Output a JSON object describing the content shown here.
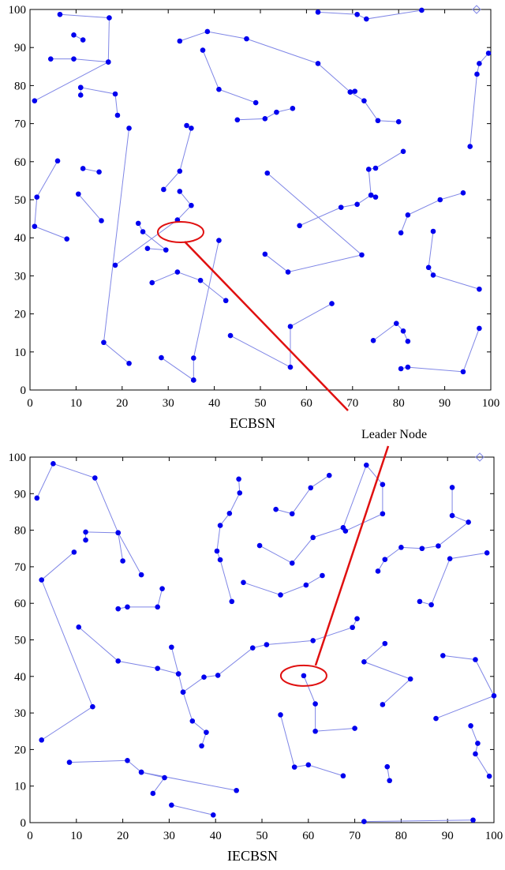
{
  "annotation": "Leader Node",
  "chart_data": [
    {
      "type": "network",
      "xlabel": "ECBSN",
      "color": "#0000ee",
      "line_color": "#7f86e6",
      "xlim": [
        0,
        100
      ],
      "ylim": [
        0,
        100
      ],
      "xticks": [
        0,
        10,
        20,
        30,
        40,
        50,
        60,
        70,
        80,
        90,
        100
      ],
      "yticks": [
        0,
        10,
        20,
        30,
        40,
        50,
        60,
        70,
        80,
        90,
        100
      ],
      "leader": {
        "x": 32.7,
        "y": 41.5
      },
      "series": [
        {
          "x": [
            6.5,
            17.2,
            17,
            1
          ],
          "y": [
            98.7,
            97.8,
            86.2,
            76
          ]
        },
        {
          "x": [
            4.5,
            9.5,
            17
          ],
          "y": [
            87,
            87,
            86.2
          ]
        },
        {
          "x": [
            9.5,
            11.5
          ],
          "y": [
            93.3,
            92
          ]
        },
        {
          "x": [
            11,
            18.5,
            19
          ],
          "y": [
            79.5,
            77.8,
            72.2
          ]
        },
        {
          "x": [
            11,
            11
          ],
          "y": [
            77.5,
            79.5
          ]
        },
        {
          "x": [
            32.5,
            38.5,
            47,
            62.5,
            69.5,
            72.5,
            75.5,
            80
          ],
          "y": [
            91.7,
            94.2,
            92.3,
            85.8,
            78.3,
            76,
            70.8,
            70.5
          ]
        },
        {
          "x": [
            70.5,
            69.5
          ],
          "y": [
            78.5,
            78.3
          ]
        },
        {
          "x": [
            37.5,
            41,
            49
          ],
          "y": [
            89.3,
            79,
            75.5
          ]
        },
        {
          "x": [
            45,
            51,
            53.5,
            57
          ],
          "y": [
            71,
            71.3,
            73,
            74
          ]
        },
        {
          "x": [
            62.5,
            71,
            73,
            85
          ],
          "y": [
            99.3,
            98.7,
            97.5,
            99.8
          ]
        },
        {
          "x": [
            95.5,
            97,
            97.5,
            99.5
          ],
          "y": [
            64,
            83,
            85.8,
            88.5
          ]
        },
        {
          "x": [
            6,
            1.5,
            1,
            8
          ],
          "y": [
            60.2,
            50.7,
            43,
            39.7
          ]
        },
        {
          "x": [
            11.5,
            15
          ],
          "y": [
            58.2,
            57.3
          ]
        },
        {
          "x": [
            10.5,
            15.5
          ],
          "y": [
            51.5,
            44.5
          ]
        },
        {
          "x": [
            21.5,
            16,
            21.5
          ],
          "y": [
            68.8,
            12.5,
            7
          ]
        },
        {
          "x": [
            34,
            35,
            32.5,
            29
          ],
          "y": [
            69.5,
            68.8,
            57.5,
            52.7
          ]
        },
        {
          "x": [
            32.5,
            35,
            32,
            18.5
          ],
          "y": [
            52.2,
            48.5,
            44.7,
            32.8
          ]
        },
        {
          "x": [
            23.5,
            24.5,
            29.5,
            25.5
          ],
          "y": [
            43.8,
            41.6,
            36.8,
            37.2
          ]
        },
        {
          "x": [
            26.5,
            32,
            37,
            42.5
          ],
          "y": [
            28.2,
            31,
            28.8,
            23.5
          ]
        },
        {
          "x": [
            41,
            35.5,
            35.5
          ],
          "y": [
            39.3,
            8.4,
            2.6
          ]
        },
        {
          "x": [
            28.5,
            35.5
          ],
          "y": [
            8.5,
            2.6
          ]
        },
        {
          "x": [
            43.5,
            56.5,
            56.5,
            65.5
          ],
          "y": [
            14.3,
            6,
            16.7,
            22.7
          ]
        },
        {
          "x": [
            51.5,
            72,
            56,
            51
          ],
          "y": [
            57,
            35.5,
            31,
            35.7
          ]
        },
        {
          "x": [
            58.5,
            67.5,
            71,
            74,
            75
          ],
          "y": [
            43.2,
            48,
            48.8,
            51.2,
            50.7
          ]
        },
        {
          "x": [
            74,
            73.5,
            75,
            81
          ],
          "y": [
            51.2,
            58,
            58.3,
            62.7
          ]
        },
        {
          "x": [
            80.5,
            82,
            89,
            94
          ],
          "y": [
            41.3,
            46,
            50,
            51.8
          ]
        },
        {
          "x": [
            87.5,
            86.5,
            87.5,
            97.5
          ],
          "y": [
            41.7,
            32.2,
            30.2,
            26.5
          ]
        },
        {
          "x": [
            74.5,
            79.5,
            81,
            82
          ],
          "y": [
            13,
            17.5,
            15.5,
            12.8
          ]
        },
        {
          "x": [
            80.5,
            82,
            94,
            97.5
          ],
          "y": [
            5.6,
            6,
            4.8,
            16.2
          ]
        }
      ]
    },
    {
      "type": "network",
      "xlabel": "IECBSN",
      "color": "#0000ee",
      "line_color": "#7f86e6",
      "xlim": [
        0,
        100
      ],
      "ylim": [
        0,
        100
      ],
      "xticks": [
        0,
        10,
        20,
        30,
        40,
        50,
        60,
        70,
        80,
        90,
        100
      ],
      "yticks": [
        0,
        10,
        20,
        30,
        40,
        50,
        60,
        70,
        80,
        90,
        100
      ],
      "leader": {
        "x": 59,
        "y": 40.2
      },
      "series": [
        {
          "x": [
            1.5,
            5,
            14,
            19,
            20
          ],
          "y": [
            88.8,
            98.2,
            94.3,
            79.3,
            71.6
          ]
        },
        {
          "x": [
            12,
            12,
            19,
            24
          ],
          "y": [
            77.3,
            79.5,
            79.3,
            67.8
          ]
        },
        {
          "x": [
            9.5,
            2.5,
            13.5,
            2.5
          ],
          "y": [
            74,
            66.4,
            31.7,
            22.6
          ]
        },
        {
          "x": [
            19,
            21,
            27.5,
            28.5
          ],
          "y": [
            58.5,
            59,
            59,
            64
          ]
        },
        {
          "x": [
            10.5,
            19,
            27.5,
            32,
            33,
            37.5,
            40.5,
            48,
            51,
            61,
            69.5,
            70.5
          ],
          "y": [
            53.5,
            44.2,
            42.2,
            40.7,
            35.7,
            39.8,
            40.3,
            47.8,
            48.7,
            49.8,
            53.4,
            55.8
          ]
        },
        {
          "x": [
            30.5,
            32
          ],
          "y": [
            48,
            40.7
          ]
        },
        {
          "x": [
            33,
            35,
            38,
            37
          ],
          "y": [
            35.7,
            27.8,
            24.7,
            21
          ]
        },
        {
          "x": [
            8.5,
            21,
            24,
            44.5
          ],
          "y": [
            16.5,
            17,
            13.8,
            8.8
          ]
        },
        {
          "x": [
            24,
            29,
            26.5
          ],
          "y": [
            13.8,
            12.3,
            8
          ]
        },
        {
          "x": [
            30.5,
            39.5
          ],
          "y": [
            4.8,
            2.1
          ]
        },
        {
          "x": [
            45,
            45.2,
            43,
            41,
            40.3,
            41,
            43.5
          ],
          "y": [
            94,
            90.2,
            84.6,
            81.3,
            74.3,
            71.9,
            60.5
          ]
        },
        {
          "x": [
            53,
            56.5,
            60.5,
            64.5
          ],
          "y": [
            85.7,
            84.5,
            91.6,
            95
          ]
        },
        {
          "x": [
            49.5,
            56.5,
            61,
            67.5,
            72.5,
            76,
            76,
            68
          ],
          "y": [
            75.8,
            71,
            78,
            80.7,
            97.8,
            92.5,
            84.5,
            79.8
          ]
        },
        {
          "x": [
            46,
            54,
            59.5,
            63
          ],
          "y": [
            65.7,
            62.3,
            65,
            67.6
          ]
        },
        {
          "x": [
            59,
            61.5,
            61.5,
            70
          ],
          "y": [
            40.2,
            32.5,
            25,
            25.8
          ]
        },
        {
          "x": [
            54,
            57,
            60,
            67.5
          ],
          "y": [
            29.5,
            15.2,
            15.8,
            12.8
          ]
        },
        {
          "x": [
            76.5,
            72,
            82,
            76
          ],
          "y": [
            49,
            44,
            39.3,
            32.3
          ]
        },
        {
          "x": [
            75,
            76.5,
            80,
            84.5,
            88,
            94.5,
            91,
            91
          ],
          "y": [
            68.8,
            72,
            75.3,
            75,
            75.7,
            82.2,
            84,
            91.7
          ]
        },
        {
          "x": [
            84,
            86.5,
            90.5,
            98.5
          ],
          "y": [
            60.5,
            59.6,
            72.2,
            73.8
          ]
        },
        {
          "x": [
            89,
            96,
            100,
            87.5
          ],
          "y": [
            45.7,
            44.6,
            34.7,
            28.5
          ]
        },
        {
          "x": [
            95,
            96.5,
            96,
            99
          ],
          "y": [
            26.5,
            21.7,
            18.8,
            12.7
          ]
        },
        {
          "x": [
            77,
            77.5
          ],
          "y": [
            15.3,
            11.5
          ]
        },
        {
          "x": [
            72,
            95.5
          ],
          "y": [
            0.3,
            0.7
          ]
        }
      ]
    }
  ]
}
